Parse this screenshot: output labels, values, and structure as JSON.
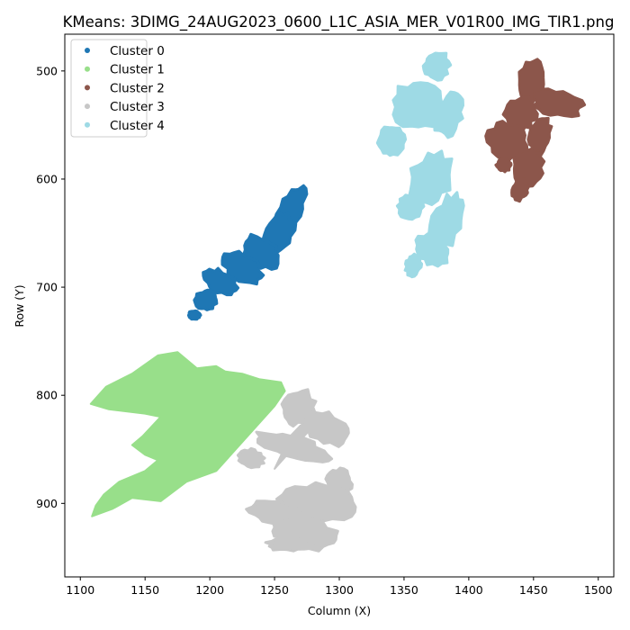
{
  "chart_data": {
    "type": "scatter",
    "title": "KMeans: 3DIMG_24AUG2023_0600_L1C_ASIA_MER_V01R00_IMG_TIR1.png",
    "xlabel": "Column (X)",
    "ylabel": "Row (Y)",
    "xlim": [
      1088,
      1512
    ],
    "ylim": [
      968,
      466
    ],
    "y_inverted": true,
    "xticks": [
      1100,
      1150,
      1200,
      1250,
      1300,
      1350,
      1400,
      1450,
      1500
    ],
    "yticks": [
      500,
      600,
      700,
      800,
      900
    ],
    "grid": false,
    "legend_position": "top-left",
    "series": [
      {
        "name": "Cluster 0",
        "color": "#1f77b4",
        "blobs": [
          [
            1262,
            630,
            9,
            26,
            0.42
          ],
          [
            1252,
            652,
            11,
            22,
            0.55
          ],
          [
            1240,
            668,
            16,
            14,
            0.6
          ],
          [
            1225,
            682,
            18,
            12,
            0.5
          ],
          [
            1208,
            695,
            14,
            10,
            0.5
          ],
          [
            1197,
            712,
            8,
            10,
            0.6
          ],
          [
            1188,
            726,
            5,
            4,
            0
          ]
        ]
      },
      {
        "name": "Cluster 1",
        "color": "#98df8a",
        "polygon": [
          [
            1109,
            912
          ],
          [
            1125,
            905
          ],
          [
            1140,
            895
          ],
          [
            1162,
            898
          ],
          [
            1182,
            880
          ],
          [
            1205,
            870
          ],
          [
            1250,
            810
          ],
          [
            1258,
            796
          ],
          [
            1255,
            788
          ],
          [
            1238,
            785
          ],
          [
            1225,
            780
          ],
          [
            1212,
            778
          ],
          [
            1205,
            773
          ],
          [
            1190,
            775
          ],
          [
            1175,
            760
          ],
          [
            1160,
            763
          ],
          [
            1140,
            780
          ],
          [
            1120,
            792
          ],
          [
            1108,
            808
          ],
          [
            1122,
            813
          ],
          [
            1150,
            817
          ],
          [
            1162,
            820
          ],
          [
            1148,
            838
          ],
          [
            1140,
            846
          ],
          [
            1150,
            855
          ],
          [
            1160,
            860
          ],
          [
            1150,
            870
          ],
          [
            1130,
            880
          ],
          [
            1118,
            892
          ],
          [
            1112,
            902
          ]
        ]
      },
      {
        "name": "Cluster 3",
        "color": "#c7c7c7",
        "blobs": [
          [
            1268,
            812,
            12,
            18,
            0.6
          ],
          [
            1290,
            830,
            20,
            14,
            0.4
          ],
          [
            1265,
            848,
            30,
            10,
            0.3
          ],
          [
            1232,
            858,
            10,
            8,
            0.2
          ],
          [
            1300,
            880,
            10,
            12,
            0.2
          ],
          [
            1285,
            900,
            32,
            18,
            0.1
          ],
          [
            1250,
            908,
            20,
            10,
            0.1
          ],
          [
            1275,
            928,
            26,
            14,
            0.2
          ],
          [
            1262,
            938,
            18,
            6,
            0
          ]
        ],
        "polygon": [
          [
            1250,
            868
          ],
          [
            1262,
            852
          ],
          [
            1285,
            822
          ],
          [
            1270,
            828
          ],
          [
            1262,
            838
          ]
        ]
      },
      {
        "name": "Cluster 4",
        "color": "#9edae5",
        "blobs": [
          [
            1375,
            495,
            10,
            14,
            0.3
          ],
          [
            1362,
            532,
            22,
            24,
            0.2
          ],
          [
            1385,
            540,
            10,
            22,
            0.3
          ],
          [
            1340,
            565,
            10,
            14,
            0.2
          ],
          [
            1370,
            600,
            16,
            26,
            0.5
          ],
          [
            1355,
            625,
            10,
            12,
            0.3
          ],
          [
            1383,
            640,
            12,
            30,
            0.4
          ],
          [
            1372,
            665,
            14,
            14,
            0.5
          ],
          [
            1357,
            680,
            6,
            10,
            0.2
          ]
        ]
      },
      {
        "name": "Cluster 2",
        "color": "#8c564b",
        "blobs": [
          [
            1448,
            510,
            10,
            22,
            0.2
          ],
          [
            1468,
            530,
            20,
            12,
            0.2
          ],
          [
            1440,
            540,
            12,
            16,
            0.3
          ],
          [
            1430,
            565,
            16,
            18,
            0.5
          ],
          [
            1455,
            560,
            8,
            18,
            0.2
          ],
          [
            1445,
            590,
            12,
            18,
            0.3
          ],
          [
            1440,
            610,
            6,
            10,
            0.4
          ],
          [
            1427,
            587,
            6,
            6,
            0
          ]
        ]
      }
    ],
    "legend": [
      {
        "name": "Cluster 0",
        "color": "#1f77b4"
      },
      {
        "name": "Cluster 1",
        "color": "#98df8a"
      },
      {
        "name": "Cluster 2",
        "color": "#8c564b"
      },
      {
        "name": "Cluster 3",
        "color": "#c7c7c7"
      },
      {
        "name": "Cluster 4",
        "color": "#9edae5"
      }
    ]
  }
}
